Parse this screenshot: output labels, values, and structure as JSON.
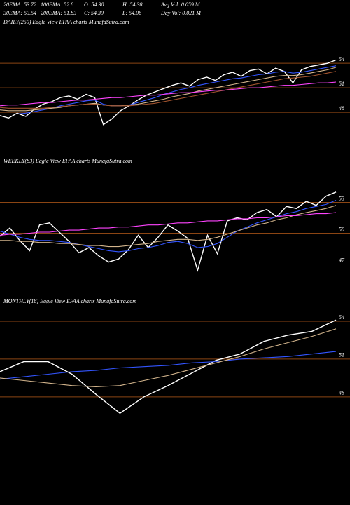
{
  "header": {
    "stats": [
      "20EMA: 53.72",
      "100EMA: 52.8",
      "O: 54.30",
      "H: 54.38",
      "Avg Vol: 0.059 M",
      "30EMA: 53.54",
      "200EMA: 51.83",
      "C: 54.39",
      "L: 54.06",
      "Day Vol: 0.021 M"
    ]
  },
  "chart_data": [
    {
      "type": "line",
      "title": "DAILY(250) Eagle View EFAA charts MunafaSutra.com",
      "ylim": [
        43.3,
        58.3
      ],
      "yticks": [
        54,
        51,
        48
      ],
      "series": [
        {
          "color": "#ffffff",
          "values": [
            47.6,
            47.3,
            47.9,
            47.5,
            48.4,
            49.0,
            49.3,
            49.8,
            50.0,
            49.6,
            50.2,
            49.8,
            46.5,
            47.2,
            48.2,
            48.8,
            49.5,
            50.1,
            50.5,
            50.9,
            51.3,
            51.6,
            51.2,
            52.0,
            52.3,
            51.9,
            52.6,
            52.9,
            52.4,
            53.1,
            53.3,
            52.7,
            53.4,
            53.0,
            51.6,
            53.2,
            53.6,
            53.8,
            54.0,
            54.4
          ]
        },
        {
          "color": "#3355ff",
          "values": [
            47.8,
            47.8,
            47.8,
            47.9,
            48.1,
            48.3,
            48.5,
            48.8,
            49.0,
            49.2,
            49.4,
            49.5,
            49.0,
            48.8,
            48.8,
            48.9,
            49.2,
            49.5,
            49.8,
            50.2,
            50.5,
            50.8,
            51.0,
            51.3,
            51.5,
            51.7,
            51.9,
            52.1,
            52.2,
            52.4,
            52.6,
            52.7,
            52.9,
            53.0,
            52.8,
            52.9,
            53.1,
            53.3,
            53.5,
            53.7
          ]
        },
        {
          "color": "#d2b48c",
          "values": [
            48.3,
            48.2,
            48.2,
            48.2,
            48.3,
            48.4,
            48.5,
            48.6,
            48.8,
            48.9,
            49.0,
            49.1,
            48.9,
            48.8,
            48.8,
            48.9,
            49.0,
            49.2,
            49.4,
            49.6,
            49.9,
            50.1,
            50.3,
            50.6,
            50.8,
            51.0,
            51.2,
            51.4,
            51.6,
            51.8,
            52.0,
            52.2,
            52.4,
            52.5,
            52.5,
            52.6,
            52.8,
            53.0,
            53.2,
            53.5
          ]
        },
        {
          "color": "#a0522d",
          "values": [
            48.6,
            48.5,
            48.5,
            48.5,
            48.5,
            48.5,
            48.6,
            48.7,
            48.8,
            48.9,
            49.0,
            49.0,
            48.9,
            48.8,
            48.8,
            48.8,
            48.9,
            49.0,
            49.1,
            49.3,
            49.5,
            49.7,
            49.9,
            50.1,
            50.3,
            50.5,
            50.7,
            50.9,
            51.1,
            51.3,
            51.5,
            51.7,
            51.9,
            52.1,
            52.2,
            52.3,
            52.4,
            52.6,
            52.8,
            53.0
          ]
        },
        {
          "color": "#ff44ff",
          "values": [
            48.8,
            48.9,
            48.9,
            49.0,
            49.1,
            49.2,
            49.2,
            49.3,
            49.4,
            49.5,
            49.5,
            49.6,
            49.7,
            49.8,
            49.8,
            49.9,
            50.0,
            50.1,
            50.1,
            50.2,
            50.3,
            50.4,
            50.4,
            50.5,
            50.6,
            50.7,
            50.7,
            50.8,
            50.9,
            51.0,
            51.0,
            51.1,
            51.2,
            51.3,
            51.3,
            51.4,
            51.5,
            51.6,
            51.6,
            51.7
          ]
        }
      ]
    },
    {
      "type": "line",
      "title": "WEEKLY(83) Eagle View EFAA charts MunafaSutra.com",
      "ylim": [
        45.4,
        56.3
      ],
      "yticks": [
        53,
        50,
        47
      ],
      "series": [
        {
          "color": "#ffffff",
          "values": [
            49.7,
            50.5,
            49.3,
            48.3,
            50.8,
            51.0,
            50.1,
            49.2,
            48.1,
            48.6,
            47.8,
            47.2,
            47.5,
            48.4,
            49.8,
            48.6,
            49.6,
            50.8,
            50.2,
            49.5,
            46.4,
            49.8,
            48.0,
            51.2,
            51.5,
            51.3,
            52.0,
            52.3,
            51.6,
            52.6,
            52.4,
            53.1,
            52.7,
            53.6,
            54.0
          ]
        },
        {
          "color": "#3355ff",
          "values": [
            50.2,
            49.9,
            49.6,
            49.4,
            49.3,
            49.3,
            49.2,
            49.1,
            48.9,
            48.7,
            48.5,
            48.3,
            48.2,
            48.3,
            48.5,
            48.6,
            48.8,
            49.1,
            49.2,
            49.0,
            48.6,
            48.7,
            49.0,
            49.6,
            50.2,
            50.6,
            51.0,
            51.3,
            51.6,
            51.9,
            52.1,
            52.4,
            52.6,
            52.8,
            53.2
          ]
        },
        {
          "color": "#d2b48c",
          "values": [
            49.3,
            49.3,
            49.2,
            49.2,
            49.1,
            49.1,
            49.0,
            49.0,
            48.9,
            48.8,
            48.8,
            48.7,
            48.7,
            48.8,
            48.9,
            49.0,
            49.2,
            49.3,
            49.4,
            49.4,
            49.3,
            49.4,
            49.6,
            49.9,
            50.2,
            50.5,
            50.8,
            51.0,
            51.3,
            51.5,
            51.8,
            52.0,
            52.2,
            52.4,
            52.7
          ]
        },
        {
          "color": "#ff44ff",
          "values": [
            49.8,
            49.9,
            49.9,
            50.0,
            50.1,
            50.1,
            50.2,
            50.3,
            50.3,
            50.4,
            50.5,
            50.5,
            50.6,
            50.6,
            50.7,
            50.8,
            50.8,
            50.9,
            51.0,
            51.0,
            51.1,
            51.2,
            51.2,
            51.3,
            51.4,
            51.4,
            51.5,
            51.5,
            51.6,
            51.7,
            51.7,
            51.8,
            51.9,
            51.9,
            52.0
          ]
        }
      ]
    },
    {
      "type": "line",
      "title": "MONTHLY(18) Eagle View EFAA charts MunafaSutra.com",
      "ylim": [
        46.1,
        55.0
      ],
      "yticks": [
        54,
        51,
        48
      ],
      "series": [
        {
          "color": "#ffffff",
          "values": [
            50.0,
            50.8,
            50.8,
            49.8,
            48.2,
            46.7,
            48.0,
            48.9,
            49.9,
            50.9,
            51.4,
            52.4,
            52.9,
            53.2,
            54.1
          ]
        },
        {
          "color": "#3355ff",
          "values": [
            49.4,
            49.6,
            49.8,
            50.0,
            50.1,
            50.3,
            50.4,
            50.5,
            50.7,
            50.8,
            51.0,
            51.1,
            51.2,
            51.4,
            51.6
          ]
        },
        {
          "color": "#d2b48c",
          "values": [
            49.5,
            49.3,
            49.1,
            48.9,
            48.8,
            48.9,
            49.3,
            49.7,
            50.2,
            50.7,
            51.2,
            51.8,
            52.3,
            52.8,
            53.4
          ]
        }
      ]
    }
  ]
}
